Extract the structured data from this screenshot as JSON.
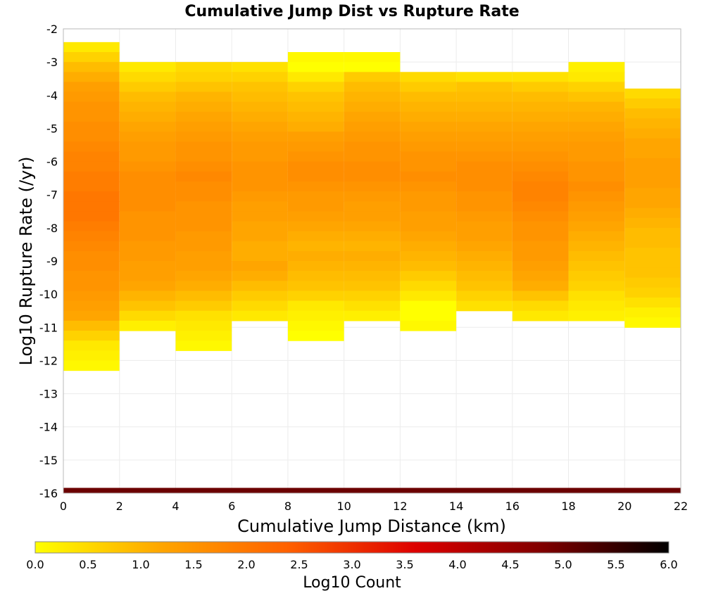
{
  "chart_data": {
    "type": "heatmap",
    "title": "Cumulative Jump Dist vs Rupture Rate",
    "xlabel": "Cumulative Jump Distance (km)",
    "ylabel": "Log10 Rupture Rate (/yr)",
    "xlim": [
      0,
      22
    ],
    "ylim": [
      -16,
      -2
    ],
    "x_ticks": [
      "0",
      "2",
      "4",
      "6",
      "8",
      "10",
      "12",
      "14",
      "16",
      "18",
      "20",
      "22"
    ],
    "y_ticks": [
      "-2",
      "-3",
      "-4",
      "-5",
      "-6",
      "-7",
      "-8",
      "-9",
      "-10",
      "-11",
      "-12",
      "-13",
      "-14",
      "-15",
      "-16"
    ],
    "x_bin_width": 2,
    "y_bin_width": 0.3,
    "grid": true,
    "colorbar": {
      "label": "Log10 Count",
      "range": [
        0,
        6
      ],
      "ticks": [
        "0.0",
        "0.5",
        "1.0",
        "1.5",
        "2.0",
        "2.5",
        "3.0",
        "3.5",
        "4.0",
        "4.5",
        "5.0",
        "5.5",
        "6.0"
      ],
      "colors": [
        "#ffff00",
        "#ffa500",
        "#ff6000",
        "#dd0000",
        "#800000",
        "#000000"
      ]
    },
    "columns": [
      {
        "x0": 0,
        "y_top": -2.4,
        "log_counts": [
          0.3,
          0.6,
          0.9,
          1.1,
          1.3,
          1.4,
          1.5,
          1.5,
          1.6,
          1.6,
          1.7,
          1.8,
          1.8,
          1.9,
          1.9,
          2.0,
          2.0,
          2.0,
          1.9,
          1.8,
          1.7,
          1.6,
          1.6,
          1.5,
          1.5,
          1.4,
          1.3,
          1.2,
          0.9,
          0.6,
          0.3,
          0.2,
          0.1
        ]
      },
      {
        "x0": 2,
        "y_top": -3.0,
        "log_counts": [
          0.3,
          0.5,
          0.7,
          0.9,
          1.0,
          1.1,
          1.2,
          1.3,
          1.4,
          1.4,
          1.5,
          1.6,
          1.6,
          1.6,
          1.6,
          1.5,
          1.5,
          1.5,
          1.4,
          1.4,
          1.3,
          1.3,
          1.2,
          1.0,
          0.8,
          0.5,
          0.2
        ]
      },
      {
        "x0": 4,
        "y_top": -3.0,
        "log_counts": [
          0.5,
          0.6,
          0.8,
          1.0,
          1.1,
          1.2,
          1.3,
          1.4,
          1.5,
          1.5,
          1.6,
          1.7,
          1.6,
          1.6,
          1.5,
          1.5,
          1.5,
          1.4,
          1.4,
          1.3,
          1.3,
          1.2,
          1.1,
          0.9,
          0.7,
          0.4,
          0.3,
          0.2,
          0.1
        ]
      },
      {
        "x0": 6,
        "y_top": -3.0,
        "log_counts": [
          0.4,
          0.6,
          0.8,
          0.9,
          1.0,
          1.1,
          1.2,
          1.3,
          1.4,
          1.4,
          1.5,
          1.5,
          1.5,
          1.4,
          1.3,
          1.3,
          1.2,
          1.2,
          1.1,
          1.1,
          1.2,
          1.1,
          0.9,
          0.7,
          0.5,
          0.3
        ]
      },
      {
        "x0": 8,
        "y_top": -2.7,
        "log_counts": [
          0.1,
          0.0,
          0.3,
          0.6,
          0.8,
          0.9,
          1.0,
          1.1,
          1.3,
          1.4,
          1.5,
          1.6,
          1.6,
          1.5,
          1.4,
          1.4,
          1.3,
          1.2,
          1.1,
          1.0,
          1.1,
          1.0,
          0.9,
          0.8,
          0.6,
          0.3,
          0.2,
          0.1,
          0.0
        ]
      },
      {
        "x0": 10,
        "y_top": -2.7,
        "log_counts": [
          0.1,
          0.0,
          0.7,
          0.9,
          1.0,
          1.1,
          1.2,
          1.3,
          1.4,
          1.5,
          1.5,
          1.6,
          1.6,
          1.5,
          1.4,
          1.3,
          1.3,
          1.2,
          1.1,
          1.0,
          1.1,
          1.0,
          0.9,
          0.8,
          0.6,
          0.4,
          0.2
        ]
      },
      {
        "x0": 12,
        "y_top": -3.3,
        "log_counts": [
          0.5,
          0.7,
          0.9,
          1.0,
          1.1,
          1.2,
          1.3,
          1.4,
          1.5,
          1.5,
          1.6,
          1.5,
          1.4,
          1.4,
          1.3,
          1.3,
          1.2,
          1.1,
          1.0,
          0.9,
          0.7,
          0.5,
          0.3,
          0.0,
          0.0,
          0.1
        ]
      },
      {
        "x0": 14,
        "y_top": -3.3,
        "log_counts": [
          0.4,
          0.8,
          0.9,
          1.0,
          1.1,
          1.2,
          1.3,
          1.4,
          1.5,
          1.6,
          1.6,
          1.6,
          1.5,
          1.5,
          1.4,
          1.3,
          1.3,
          1.2,
          1.1,
          1.0,
          0.9,
          0.8,
          0.6,
          0.4
        ]
      },
      {
        "x0": 16,
        "y_top": -3.3,
        "log_counts": [
          0.4,
          0.7,
          0.9,
          1.0,
          1.1,
          1.2,
          1.3,
          1.4,
          1.5,
          1.6,
          1.7,
          1.8,
          1.8,
          1.7,
          1.6,
          1.5,
          1.5,
          1.4,
          1.4,
          1.3,
          1.2,
          1.1,
          0.8,
          0.5,
          0.3
        ]
      },
      {
        "x0": 18,
        "y_top": -3.0,
        "log_counts": [
          0.2,
          0.3,
          0.6,
          0.8,
          1.0,
          1.1,
          1.2,
          1.3,
          1.4,
          1.4,
          1.5,
          1.5,
          1.6,
          1.5,
          1.4,
          1.3,
          1.2,
          1.1,
          1.0,
          0.9,
          0.8,
          0.7,
          0.6,
          0.4,
          0.3,
          0.2
        ]
      },
      {
        "x0": 20,
        "y_top": -3.8,
        "log_counts": [
          0.5,
          0.7,
          0.9,
          1.0,
          1.1,
          1.2,
          1.2,
          1.3,
          1.3,
          1.3,
          1.2,
          1.2,
          1.1,
          1.0,
          0.9,
          0.9,
          0.8,
          0.8,
          0.8,
          0.7,
          0.6,
          0.4,
          0.2,
          0.1
        ]
      }
    ],
    "bottom_row": {
      "y0": -16.0,
      "y1": -15.84,
      "log_count": 5.0
    }
  }
}
